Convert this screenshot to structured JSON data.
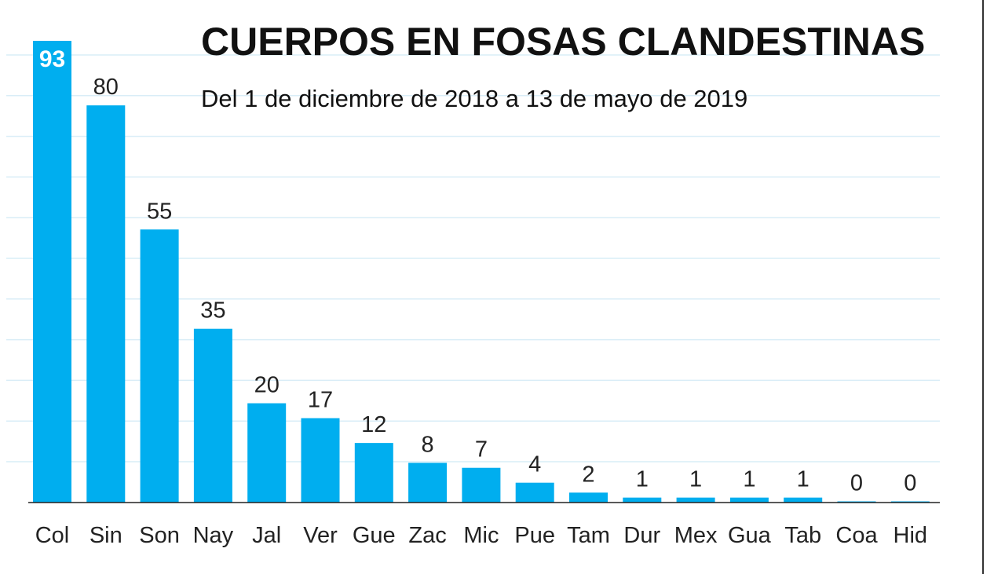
{
  "chart_data": {
    "type": "bar",
    "title": "CUERPOS EN FOSAS CLANDESTINAS",
    "subtitle": "Del 1 de diciembre de 2018 a 13 de mayo de 2019",
    "categories": [
      "Col",
      "Sin",
      "Son",
      "Nay",
      "Jal",
      "Ver",
      "Gue",
      "Zac",
      "Mic",
      "Pue",
      "Tam",
      "Dur",
      "Mex",
      "Gua",
      "Tab",
      "Coa",
      "Hid"
    ],
    "values": [
      93,
      80,
      55,
      35,
      20,
      17,
      12,
      8,
      7,
      4,
      2,
      1,
      1,
      1,
      1,
      0,
      0
    ],
    "ylim": [
      0,
      93
    ],
    "grid": true,
    "bar_color": "#00aeef",
    "grid_color": "#d9edf7"
  }
}
